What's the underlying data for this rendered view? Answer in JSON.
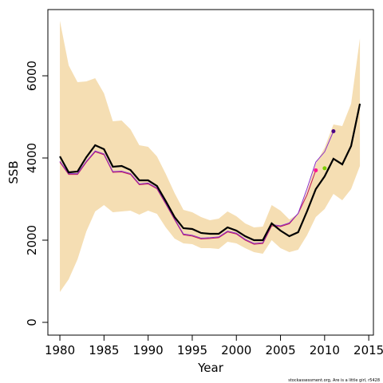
{
  "chart_data": {
    "type": "line",
    "xlabel": "Year",
    "ylabel": "SSB",
    "footnote": "stockassessment.org, Are is a little girl, r5428",
    "x": [
      1980,
      1981,
      1982,
      1983,
      1984,
      1985,
      1986,
      1987,
      1988,
      1989,
      1990,
      1991,
      1992,
      1993,
      1994,
      1995,
      1996,
      1997,
      1998,
      1999,
      2000,
      2001,
      2002,
      2003,
      2004,
      2005,
      2006,
      2007,
      2008,
      2009,
      2010,
      2011,
      2012,
      2013,
      2014
    ],
    "band": {
      "color": "#f5deb3",
      "upper": [
        7340,
        6252,
        5845,
        5864,
        5942,
        5573,
        4893,
        4913,
        4699,
        4311,
        4272,
        4039,
        3612,
        3146,
        2738,
        2680,
        2563,
        2485,
        2524,
        2699,
        2583,
        2408,
        2311,
        2330,
        2854,
        2718,
        2505,
        2641,
        3184,
        3864,
        4252,
        4816,
        4777,
        5320,
        6913
      ],
      "lower": [
        738,
        1049,
        1534,
        2214,
        2699,
        2854,
        2680,
        2699,
        2718,
        2621,
        2718,
        2641,
        2311,
        2039,
        1922,
        1903,
        1806,
        1806,
        1786,
        1961,
        1922,
        1806,
        1709,
        1670,
        2000,
        1806,
        1709,
        1767,
        2117,
        2563,
        2757,
        3126,
        2971,
        3243,
        3806
      ]
    },
    "series": [
      {
        "color": "#c2185b",
        "width": 1,
        "values": [
          3900,
          3600,
          3600,
          3900,
          4150,
          4080,
          3650,
          3660,
          3600,
          3350,
          3370,
          3250,
          2880,
          2500,
          2130,
          2100,
          2030,
          2040,
          2060,
          2200,
          2150,
          2000,
          1900,
          1920,
          2350,
          2330,
          2400,
          2650,
          3100,
          3700,
          null,
          null,
          null,
          null,
          null
        ]
      },
      {
        "color": "#8b2fc9",
        "width": 1,
        "values": [
          3920,
          3620,
          3620,
          3920,
          4170,
          4100,
          3670,
          3680,
          3620,
          3370,
          3390,
          3270,
          2900,
          2520,
          2150,
          2120,
          2050,
          2060,
          2080,
          2220,
          2170,
          2020,
          1920,
          1940,
          2380,
          2350,
          2420,
          2650,
          3250,
          3900,
          4150,
          4650,
          null,
          null,
          null
        ]
      },
      {
        "color": "#000000",
        "width": 2.2,
        "values": [
          4039,
          3650,
          3670,
          4020,
          4311,
          4214,
          3786,
          3806,
          3709,
          3456,
          3456,
          3320,
          2951,
          2563,
          2291,
          2272,
          2175,
          2155,
          2155,
          2311,
          2233,
          2097,
          2000,
          2000,
          2408,
          2233,
          2097,
          2194,
          2699,
          3243,
          3553,
          3981,
          3845,
          4291,
          5320
        ]
      }
    ],
    "points": [
      {
        "x": 2009,
        "y": 3700,
        "color": "#ff1493"
      },
      {
        "x": 2010,
        "y": 3750,
        "color": "#7ccd00"
      },
      {
        "x": 2011,
        "y": 4650,
        "color": "#4b0082"
      }
    ],
    "xlim": [
      1978.64,
      2015.53
    ],
    "ylim": [
      -311,
      7612
    ],
    "xticks": [
      1980,
      1985,
      1990,
      1995,
      2000,
      2005,
      2010,
      2015
    ],
    "yticks": [
      0,
      2000,
      4000,
      6000
    ]
  }
}
